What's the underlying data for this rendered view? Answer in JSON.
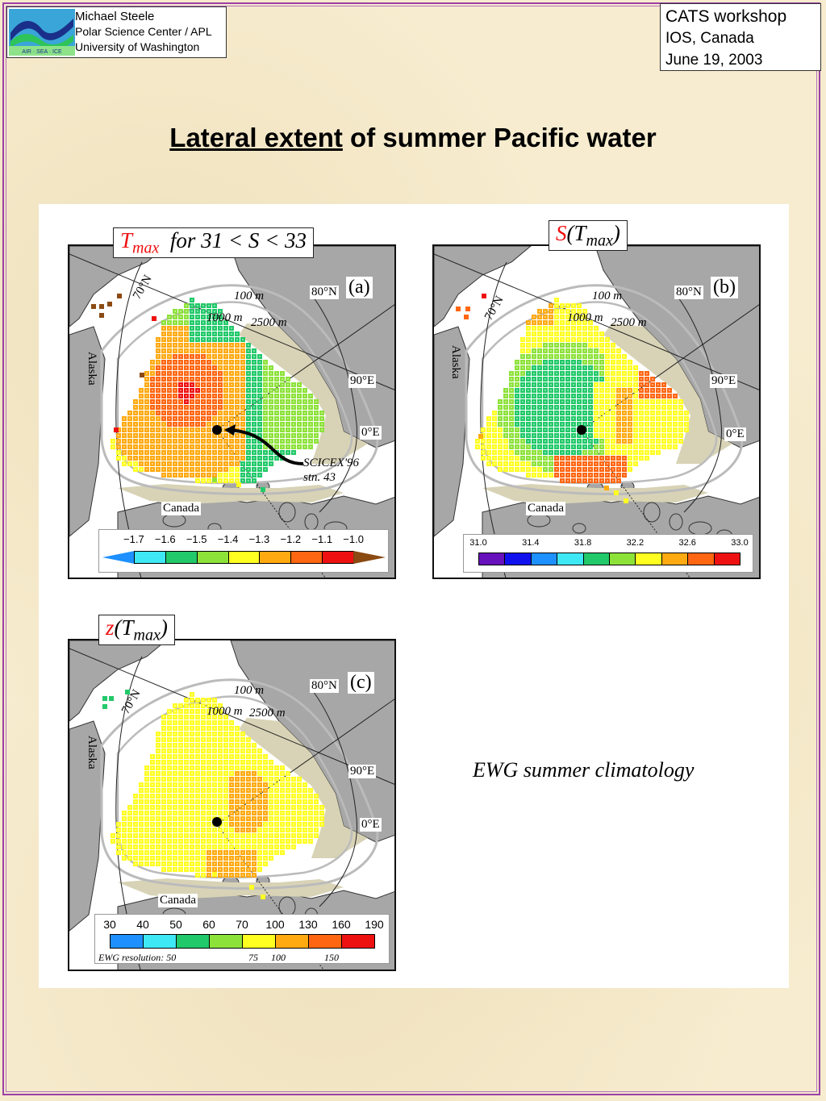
{
  "header": {
    "author": {
      "name": "Michael Steele",
      "affiliation": "Polar Science Center / APL",
      "institution": "University of Washington",
      "logo_text": "AIR · SEA · ICE"
    },
    "workshop": {
      "name": "CATS workshop",
      "location": "IOS, Canada",
      "date": "June 19, 2003"
    }
  },
  "title": {
    "underlined": "Lateral extent",
    "rest": " of summer Pacific water"
  },
  "caption": "EWG summer climatology",
  "panels": {
    "a": {
      "letter": "(a)",
      "label_var": "T",
      "label_sub": "max",
      "label_rest": "for  31 < S < 33",
      "colorbar_ticks": [
        "−1.7",
        "−1.6",
        "−1.5",
        "−1.4",
        "−1.3",
        "−1.2",
        "−1.1",
        "−1.0"
      ],
      "colorbar_colors": [
        "#1e90ff",
        "#3fe8f5",
        "#22c96a",
        "#8de23a",
        "#ffff22",
        "#ffaa11",
        "#ff6611",
        "#ee1111",
        "#8b4a12"
      ],
      "station_label_1": "SCICEX'96",
      "station_label_2": "stn. 43"
    },
    "b": {
      "letter": "(b)",
      "label_var": "S",
      "label_paren_var": "T",
      "label_sub": "max",
      "colorbar_ticks": [
        "31.0",
        "31.4",
        "31.8",
        "32.2",
        "32.6",
        "33.0"
      ],
      "colorbar_colors": [
        "#6611bb",
        "#1111ee",
        "#1e90ff",
        "#3fe8f5",
        "#22c96a",
        "#8de23a",
        "#ffff22",
        "#ffaa11",
        "#ff6611",
        "#ee1111"
      ]
    },
    "c": {
      "letter": "(c)",
      "label_var": "z",
      "label_paren_var": "T",
      "label_sub": "max",
      "colorbar_ticks": [
        "30",
        "40",
        "50",
        "60",
        "70",
        "100",
        "130",
        "160",
        "190"
      ],
      "colorbar_colors": [
        "#1e90ff",
        "#3fe8f5",
        "#22c96a",
        "#8de23a",
        "#ffff22",
        "#ffaa11",
        "#ff6611",
        "#ee1111"
      ],
      "resolution_label": "EWG resolution: 50",
      "resolution_values": [
        "75",
        "100",
        "150"
      ]
    }
  },
  "map_labels": {
    "contour_100": "100 m",
    "contour_1000": "1000 m",
    "contour_2500": "2500 m",
    "lat_80": "80°N",
    "lat_70": "70°N",
    "lon_90": "90°E",
    "lon_0": "0°E",
    "alaska": "Alaska",
    "canada": "Canada"
  },
  "colors": {
    "land": "#a7a7a7",
    "shelf": "#d8d3b6",
    "contour": "#bbbbbb",
    "frame_border": "#9b3fa6",
    "label_red": "#e11111"
  }
}
